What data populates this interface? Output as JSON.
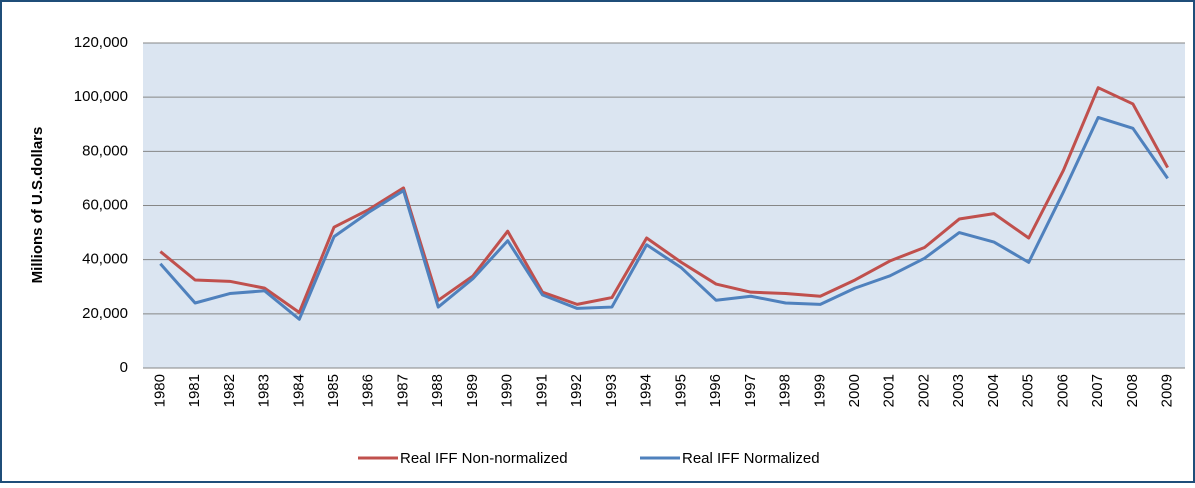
{
  "chart_data": {
    "type": "line",
    "y_label": "Millions of U.S.dollars",
    "categories": [
      "1980",
      "1981",
      "1982",
      "1983",
      "1984",
      "1985",
      "1986",
      "1987",
      "1988",
      "1989",
      "1990",
      "1991",
      "1992",
      "1993",
      "1994",
      "1995",
      "1996",
      "1997",
      "1998",
      "1999",
      "2000",
      "2001",
      "2002",
      "2003",
      "2004",
      "2005",
      "2006",
      "2007",
      "2008",
      "2009"
    ],
    "series": [
      {
        "name": "Real IFF Non-normalized",
        "color": "#c0504d",
        "values": [
          43000,
          32500,
          32000,
          29500,
          20500,
          52000,
          58500,
          66500,
          25000,
          34000,
          50500,
          28000,
          23500,
          26000,
          48000,
          39000,
          31000,
          28000,
          27500,
          26500,
          32500,
          39500,
          44500,
          55000,
          57000,
          48000,
          73000,
          103500,
          97500,
          74000
        ]
      },
      {
        "name": "Real IFF Normalized",
        "color": "#4f81bd",
        "values": [
          38500,
          24000,
          27500,
          28500,
          18000,
          48500,
          57500,
          65500,
          22500,
          33000,
          47000,
          27000,
          22000,
          22500,
          45500,
          37000,
          25000,
          26500,
          24000,
          23500,
          29500,
          34000,
          40500,
          50000,
          46500,
          39000,
          65000,
          92500,
          88500,
          70000
        ]
      }
    ],
    "ylim": [
      0,
      120000
    ],
    "yticks": [
      0,
      {
        "value": 20000,
        "label": "20,000"
      },
      {
        "value": 40000,
        "label": "40,000"
      },
      {
        "value": 60000,
        "label": "60,000"
      },
      {
        "value": 80000,
        "label": "80,000"
      },
      {
        "value": 100000,
        "label": "100,000"
      },
      {
        "value": 120000,
        "label": "120,000"
      }
    ],
    "grid": true,
    "legend": "bottom"
  }
}
